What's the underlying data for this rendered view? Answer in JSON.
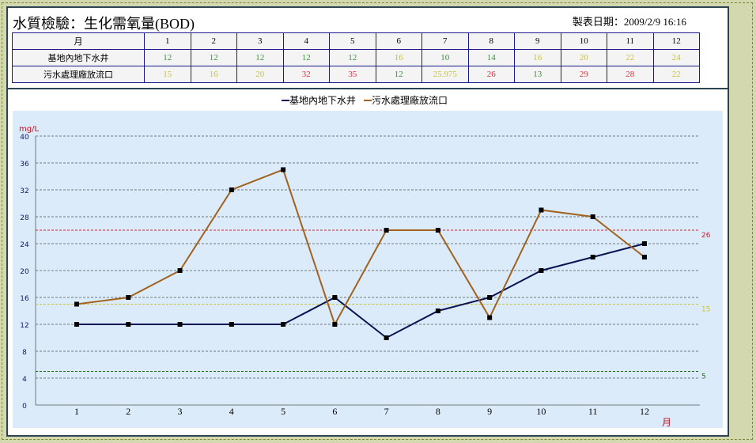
{
  "title": "水質檢驗：生化需氧量(BOD)",
  "date_label": "製表日期：",
  "date_value": "2009/2/9 16:16",
  "table": {
    "header": "月",
    "rows": [
      {
        "label": "基地內地下水井",
        "values": [
          "12",
          "12",
          "12",
          "12",
          "12",
          "16",
          "10",
          "14",
          "16",
          "20",
          "22",
          "24"
        ]
      },
      {
        "label": "污水處理廠放流口",
        "values": [
          "15",
          "16",
          "20",
          "32",
          "35",
          "12",
          "25.975",
          "26",
          "13",
          "29",
          "28",
          "22"
        ]
      }
    ]
  },
  "value_colors": {
    "low": "#3d8f3d",
    "mid": "#c9c23a",
    "high": "#e2303c"
  },
  "chart_data": {
    "type": "line",
    "x": [
      1,
      2,
      3,
      4,
      5,
      6,
      7,
      8,
      9,
      10,
      11,
      12
    ],
    "xlabel": "月",
    "ylabel": "mg/L",
    "ylim": [
      0,
      40
    ],
    "yticks": [
      0,
      4,
      8,
      12,
      16,
      20,
      24,
      28,
      32,
      36,
      40
    ],
    "grid": true,
    "legend": "top-center",
    "series": [
      {
        "name": "基地內地下水井",
        "color": "#0a1452",
        "values": [
          12,
          12,
          12,
          12,
          12,
          16,
          10,
          14,
          16,
          20,
          22,
          24
        ]
      },
      {
        "name": "污水處理廠放流口",
        "color": "#a0621e",
        "values": [
          15,
          16,
          20,
          32,
          35,
          12,
          26,
          26,
          13,
          29,
          28,
          22
        ]
      }
    ],
    "thresholds": [
      {
        "value": 26,
        "label": "26",
        "color": "#d0202a"
      },
      {
        "value": 15,
        "label": "15",
        "color": "#c9c23a"
      },
      {
        "value": 5,
        "label": "5",
        "color": "#1b6b1b"
      }
    ],
    "background": "#dcebf9"
  }
}
